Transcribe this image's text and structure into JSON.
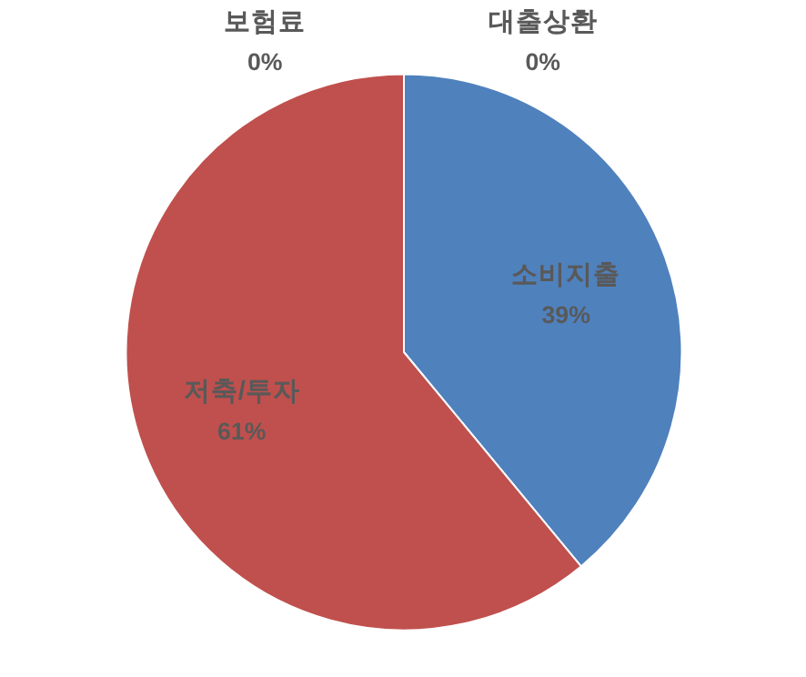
{
  "chart_data": {
    "type": "pie",
    "categories": [
      "소비지출",
      "저축/투자",
      "보험료",
      "대출상환"
    ],
    "values": [
      39,
      61,
      0,
      0
    ],
    "colors": [
      "#4f81bd",
      "#c0504d",
      "#9bbb59",
      "#8064a2"
    ],
    "value_labels": [
      "39%",
      "61%",
      "0%",
      "0%"
    ]
  }
}
